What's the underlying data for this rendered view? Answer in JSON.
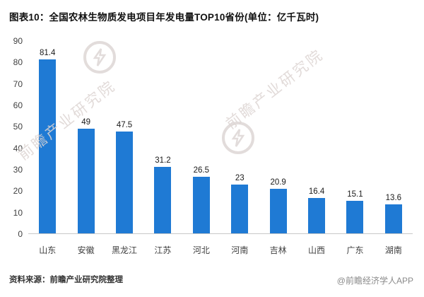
{
  "title": "图表10：全国农林生物质发电项目年发电量TOP10省份(单位：亿千瓦时)",
  "source_note": "资料来源：前瞻产业研究院整理",
  "credit": "@前瞻经济学人APP",
  "watermark": {
    "text": "前瞻产业研究院"
  },
  "chart_data": {
    "type": "bar",
    "title": "全国农林生物质发电项目年发电量TOP10省份",
    "unit": "亿千瓦时",
    "categories": [
      "山东",
      "安徽",
      "黑龙江",
      "江苏",
      "河北",
      "河南",
      "吉林",
      "山西",
      "广东",
      "湖南"
    ],
    "values": [
      81.4,
      49,
      47.5,
      31.2,
      26.5,
      23,
      20.9,
      16.4,
      15.1,
      13.6
    ],
    "labels": [
      "81.4",
      "49",
      "47.5",
      "31.2",
      "26.5",
      "23",
      "20.9",
      "16.4",
      "15.1",
      "13.6"
    ],
    "xlabel": "",
    "ylabel": "",
    "ylim": [
      0,
      90
    ],
    "ytick_labels": [
      "90",
      "80",
      "70",
      "60",
      "50",
      "40",
      "30",
      "20",
      "10",
      "0"
    ],
    "grid": false,
    "legend": "none",
    "bar_color": "#1f7ad4"
  }
}
